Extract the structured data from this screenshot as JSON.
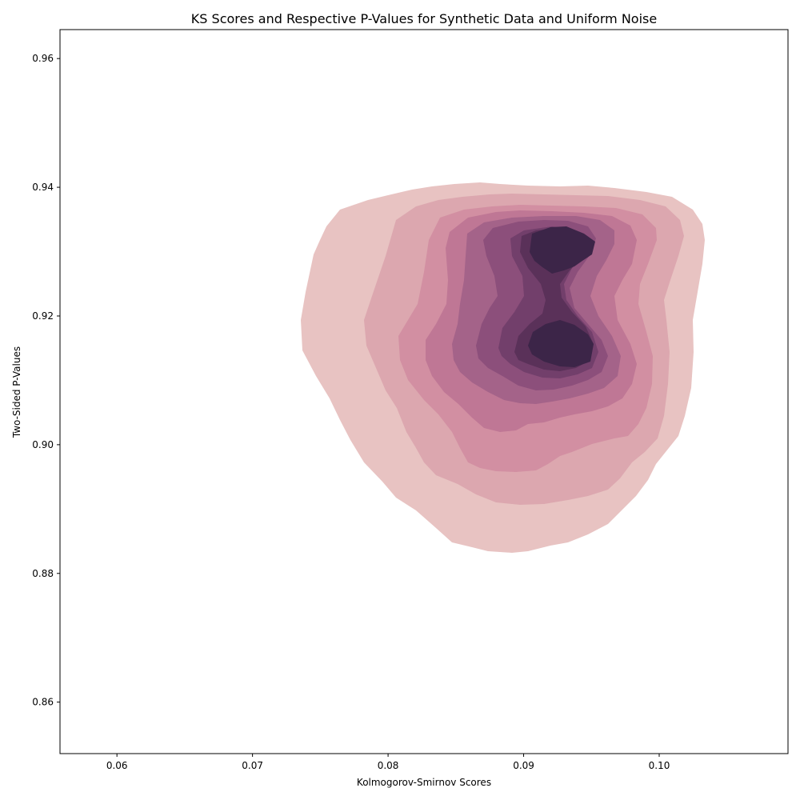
{
  "chart_data": {
    "type": "kde_contour",
    "title": "KS Scores and Respective P-Values for Synthetic Data and Uniform Noise",
    "xlabel": "Kolmogorov-Smirnov Scores",
    "ylabel": "Two-Sided P-Values",
    "xlim": [
      0.0558,
      0.1095
    ],
    "ylim": [
      0.852,
      0.9645
    ],
    "xticks": [
      0.06,
      0.07,
      0.08,
      0.09,
      0.1
    ],
    "xtick_labels": [
      "0.06",
      "0.07",
      "0.08",
      "0.09",
      "0.10"
    ],
    "yticks": [
      0.86,
      0.88,
      0.9,
      0.92,
      0.94,
      0.96
    ],
    "ytick_labels": [
      "0.86",
      "0.88",
      "0.90",
      "0.92",
      "0.94",
      "0.96"
    ],
    "grid": false,
    "legend": "none",
    "levels": [
      {
        "color": "#e8c3c2",
        "mode": {
          "x": 0.0888,
          "y": 0.9125
        },
        "extent": {
          "x": [
            0.0735,
            0.1033
          ],
          "y": [
            0.8832,
            0.9408
          ]
        }
      },
      {
        "color": "#dca7af",
        "mode": {
          "x": 0.0905,
          "y": 0.9135
        },
        "extent": {
          "x": [
            0.0785,
            0.1018
          ],
          "y": [
            0.8905,
            0.9385
          ]
        }
      },
      {
        "color": "#d28fa2",
        "mode": {
          "x": 0.0915,
          "y": 0.914
        },
        "extent": {
          "x": [
            0.0818,
            0.1002
          ],
          "y": [
            0.8955,
            0.9385
          ]
        }
      },
      {
        "color": "#bf7795",
        "mode": {
          "x": 0.092,
          "y": 0.9145
        },
        "extent": {
          "x": [
            0.0838,
            0.0985
          ],
          "y": [
            0.902,
            0.9378
          ]
        }
      },
      {
        "color": "#a46389",
        "mode": {
          "x": 0.0925,
          "y": 0.915
        },
        "extent": {
          "x": [
            0.0856,
            0.0975
          ],
          "y": [
            0.9045,
            0.937
          ]
        }
      },
      {
        "color": "#8c4f7b",
        "mode": {
          "x": 0.0928,
          "y": 0.915
        },
        "extent": {
          "x": [
            0.087,
            0.0967
          ],
          "y": [
            0.907,
            0.936
          ]
        }
      },
      {
        "color": "#723f6b",
        "mode": {
          "x": 0.093,
          "y": 0.915
        },
        "extent": {
          "x": [
            0.0882,
            0.0958
          ],
          "y": [
            0.909,
            0.9355
          ]
        }
      },
      {
        "color": "#5a3159",
        "mode": {
          "x": 0.093,
          "y": 0.9155
        },
        "extent": {
          "x": [
            0.0893,
            0.095
          ],
          "y": [
            0.9105,
            0.9345
          ]
        }
      },
      {
        "color": "#3c2548",
        "mode": {
          "x": 0.093,
          "y": 0.9155
        },
        "extent": {
          "x": [
            0.09,
            0.0945
          ],
          "y": [
            0.9115,
            0.934
          ]
        }
      }
    ]
  }
}
